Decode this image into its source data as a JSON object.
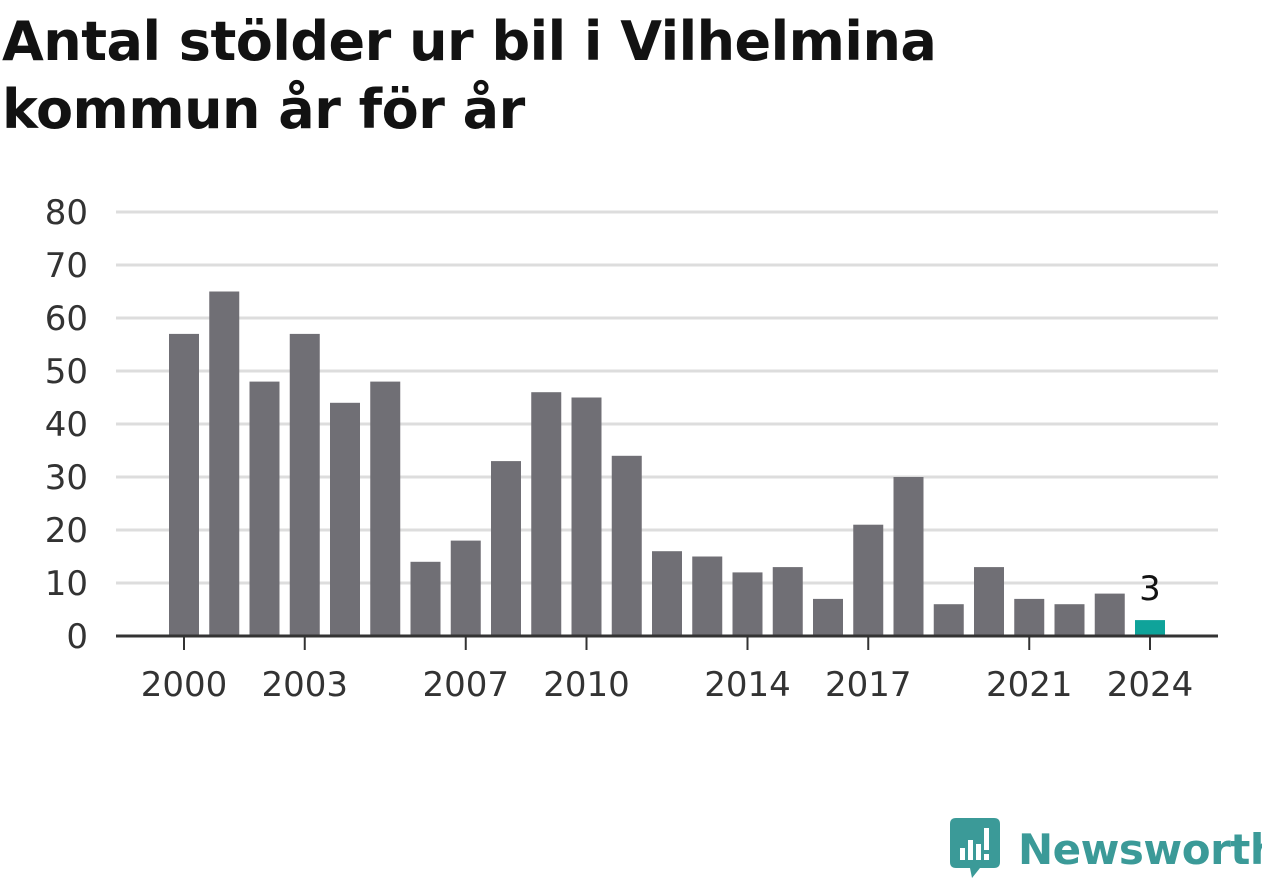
{
  "title": "Antal stölder ur bil i Vilhelmina kommun år för år",
  "brand": {
    "name": "Newsworthy",
    "icon": "newsworthy-logo-icon",
    "color": "#3b9a98"
  },
  "chart_data": {
    "type": "bar",
    "title": "Antal stölder ur bil i Vilhelmina kommun år för år",
    "categories": [
      2000,
      2001,
      2002,
      2003,
      2004,
      2005,
      2006,
      2007,
      2008,
      2009,
      2010,
      2011,
      2012,
      2013,
      2014,
      2015,
      2016,
      2017,
      2018,
      2019,
      2020,
      2021,
      2022,
      2023,
      2024
    ],
    "values": [
      57,
      65,
      48,
      57,
      44,
      48,
      14,
      18,
      33,
      46,
      45,
      34,
      16,
      15,
      12,
      13,
      7,
      21,
      30,
      6,
      13,
      7,
      6,
      8,
      3
    ],
    "x_tick_labels": [
      "2000",
      "2003",
      "2007",
      "2010",
      "2014",
      "2017",
      "2021",
      "2024"
    ],
    "y_ticks": [
      0,
      10,
      20,
      30,
      40,
      50,
      60,
      70,
      80
    ],
    "ylim": [
      0,
      80
    ],
    "xlabel": "",
    "ylabel": "",
    "grid": true,
    "bar_color": "#706f75",
    "highlight_color": "#0fa39a",
    "highlight_last": true,
    "data_labels": [
      {
        "category": 2024,
        "text": "3"
      }
    ]
  }
}
